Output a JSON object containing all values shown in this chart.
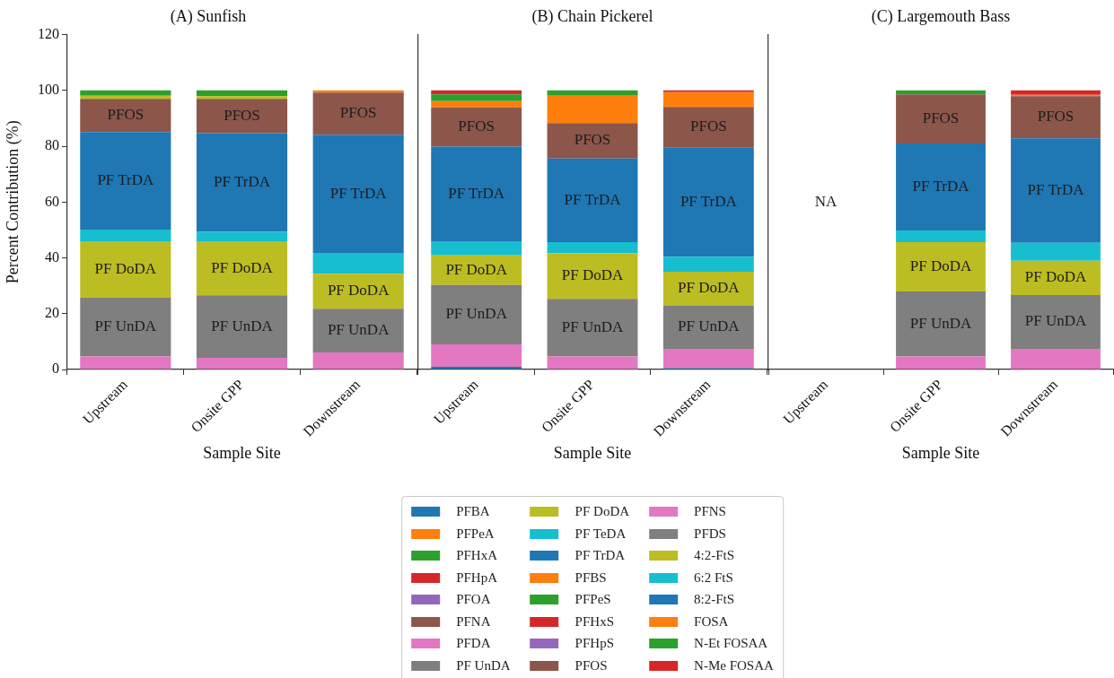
{
  "chart_data": [
    {
      "type": "bar",
      "title": "(A) Sunfish",
      "xlabel": "Sample Site",
      "ylabel": "Percent Contribution (%)",
      "categories": [
        "Upstream",
        "Onsite GPP",
        "Downstream"
      ],
      "stacked": true,
      "ylim": [
        0,
        120
      ],
      "yticks": [
        0,
        20,
        40,
        60,
        80,
        100,
        120
      ],
      "legend": false,
      "series": [
        {
          "color": "#e377c2",
          "values": [
            4.7,
            4.2,
            6.1
          ]
        },
        {
          "name": "PF UnDA",
          "color": "#7f7f7f",
          "values": [
            21.1,
            22.4,
            15.7
          ]
        },
        {
          "name": "PF DoDA",
          "color": "#bcbd22",
          "values": [
            19.9,
            19.1,
            12.5
          ]
        },
        {
          "color": "#17becf",
          "values": [
            4.4,
            3.6,
            7.5
          ]
        },
        {
          "name": "PF TrDA",
          "color": "#1f77b4",
          "values": [
            35.0,
            35.4,
            42.3
          ]
        },
        {
          "name": "PFOS",
          "color": "#8c564b",
          "values": [
            11.9,
            12.3,
            15.1
          ]
        },
        {
          "color": "#bcbd22",
          "values": [
            1.1,
            0.9,
            null
          ]
        },
        {
          "color": "#ff7f0e",
          "values": [
            null,
            null,
            0.8
          ]
        },
        {
          "color": "#2ca02c",
          "values": [
            1.9,
            2.1,
            null
          ]
        }
      ]
    },
    {
      "type": "bar",
      "title": "(B) Chain Pickerel",
      "xlabel": "Sample Site",
      "categories": [
        "Upstream",
        "Onsite GPP",
        "Downstream"
      ],
      "stacked": true,
      "ylim": [
        0,
        120
      ],
      "yticks": [
        0,
        20,
        40,
        60,
        80,
        100,
        120
      ],
      "tick_labels": "x",
      "legend": "bottom",
      "series": [
        {
          "name": "PFBA",
          "color": "#1f77b4",
          "values": [
            1.0,
            null,
            0.5
          ]
        },
        {
          "name": "PFPeA",
          "color": "#ff7f0e",
          "values": [
            null,
            null,
            null
          ]
        },
        {
          "name": "PFHxA",
          "color": "#2ca02c",
          "values": [
            null,
            null,
            null
          ]
        },
        {
          "name": "PFHpA",
          "color": "#d62728",
          "values": [
            null,
            null,
            null
          ]
        },
        {
          "name": "PFOA",
          "color": "#9467bd",
          "values": [
            null,
            null,
            null
          ]
        },
        {
          "name": "PFNA",
          "color": "#8c564b",
          "values": [
            null,
            null,
            null
          ]
        },
        {
          "name": "PFDA",
          "color": "#e377c2",
          "values": [
            8.0,
            4.7,
            6.9
          ]
        },
        {
          "name": "PF UnDA",
          "color": "#7f7f7f",
          "values": [
            21.3,
            20.6,
            15.6
          ]
        },
        {
          "name": "PF DoDA",
          "color": "#bcbd22",
          "values": [
            10.6,
            16.4,
            12.0
          ]
        },
        {
          "name": "PF TeDA",
          "color": "#17becf",
          "values": [
            4.8,
            3.9,
            5.4
          ]
        },
        {
          "name": "PF TrDA",
          "color": "#1f77b4",
          "values": [
            34.2,
            30.0,
            39.2
          ]
        },
        {
          "name": "PFBS",
          "color": "#ff7f0e",
          "values": [
            null,
            null,
            null
          ]
        },
        {
          "name": "PFPeS",
          "color": "#2ca02c",
          "values": [
            null,
            null,
            null
          ]
        },
        {
          "name": "PFHxS",
          "color": "#d62728",
          "values": [
            null,
            null,
            null
          ]
        },
        {
          "name": "PFHpS",
          "color": "#9467bd",
          "values": [
            null,
            null,
            null
          ]
        },
        {
          "name": "PFOS",
          "color": "#8c564b",
          "values": [
            14.0,
            12.7,
            14.5
          ]
        },
        {
          "name": "PFNS",
          "color": "#e377c2",
          "values": [
            null,
            null,
            null
          ]
        },
        {
          "name": "PFDS",
          "color": "#7f7f7f",
          "values": [
            null,
            null,
            null
          ]
        },
        {
          "name": "4:2-FtS",
          "color": "#bcbd22",
          "values": [
            null,
            null,
            null
          ]
        },
        {
          "name": "6:2 FtS",
          "color": "#17becf",
          "values": [
            null,
            null,
            null
          ]
        },
        {
          "name": "8:2-FtS",
          "color": "#1f77b4",
          "values": [
            null,
            null,
            null
          ]
        },
        {
          "name": "FOSA",
          "color": "#ff7f0e",
          "values": [
            2.3,
            9.8,
            5.3
          ]
        },
        {
          "name": "N-Et FOSAA",
          "color": "#2ca02c",
          "values": [
            2.4,
            1.9,
            null
          ]
        },
        {
          "name": "N-Me FOSAA",
          "color": "#d62728",
          "values": [
            1.4,
            null,
            0.6
          ]
        }
      ]
    },
    {
      "type": "bar",
      "title": "(C) Largemouth Bass",
      "xlabel": "Sample Site",
      "categories": [
        "Upstream",
        "Onsite GPP",
        "Downstream"
      ],
      "stacked": true,
      "ylim": [
        0,
        120
      ],
      "yticks": [
        0,
        20,
        40,
        60,
        80,
        100,
        120
      ],
      "tick_labels": "x",
      "legend": false,
      "series": [
        {
          "color": "#e377c2",
          "values": [
            null,
            4.7,
            7.4
          ]
        },
        {
          "name": "PF UnDA",
          "color": "#7f7f7f",
          "values": [
            null,
            23.3,
            19.3
          ]
        },
        {
          "name": "PF DoDA",
          "color": "#bcbd22",
          "values": [
            null,
            17.6,
            12.3
          ]
        },
        {
          "color": "#17becf",
          "values": [
            null,
            4.2,
            6.4
          ]
        },
        {
          "name": "PF TrDA",
          "color": "#1f77b4",
          "values": [
            null,
            31.2,
            37.4
          ]
        },
        {
          "name": "PFOS",
          "color": "#8c564b",
          "values": [
            null,
            17.6,
            15.1
          ]
        },
        {
          "color": "#ff7f0e",
          "values": [
            null,
            null,
            0.5
          ]
        },
        {
          "color": "#2ca02c",
          "values": [
            null,
            1.4,
            null
          ]
        },
        {
          "color": "#d62728",
          "values": [
            null,
            null,
            1.6
          ]
        }
      ],
      "annotations": [
        "NA"
      ]
    }
  ]
}
